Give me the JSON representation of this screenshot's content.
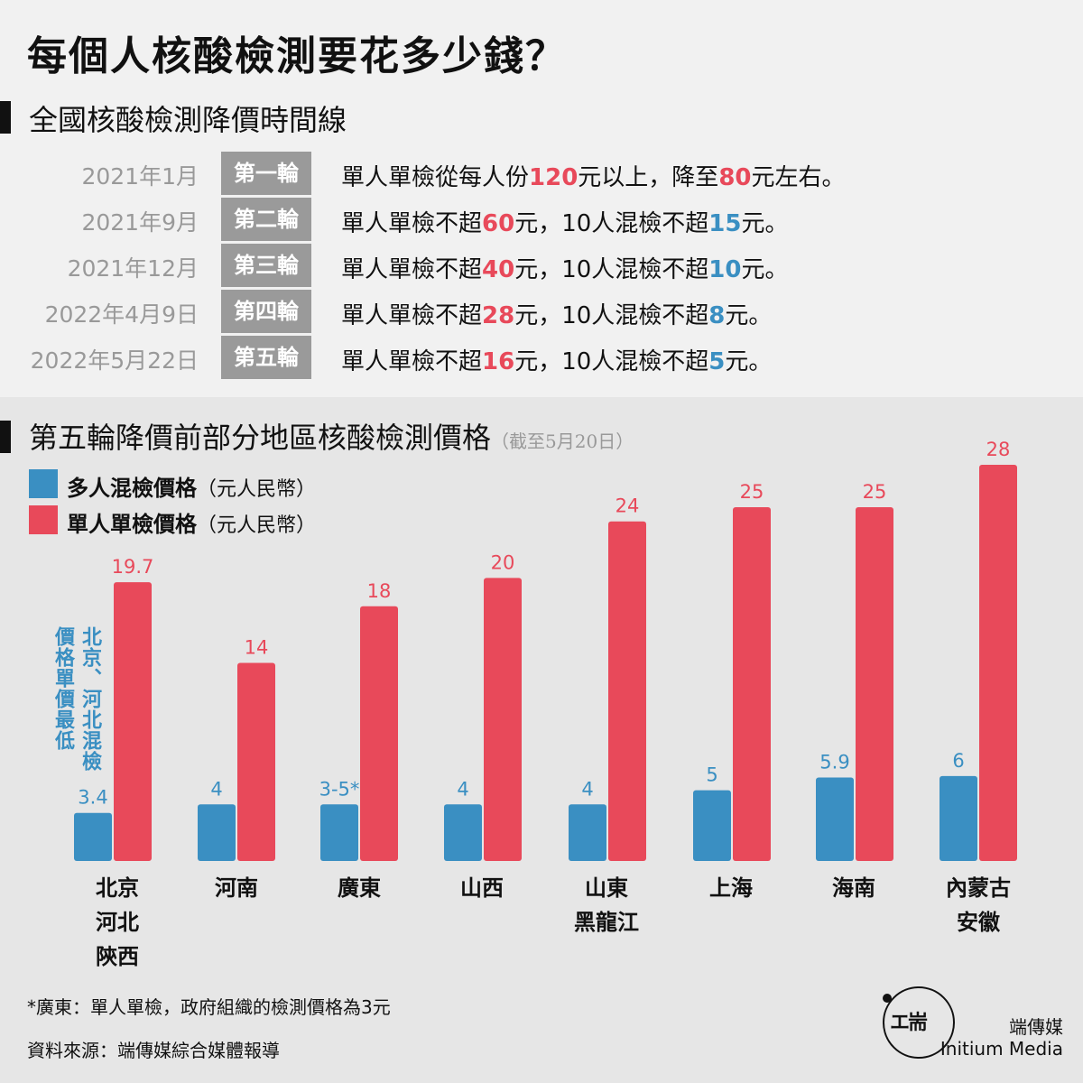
{
  "title": "每個人核酸檢測要花多少錢？",
  "section1": {
    "title": "全國核酸檢測降價時間線",
    "rows": [
      {
        "date": "2021年1月",
        "round": "第一輪",
        "text": [
          [
            "單人單檢從每人份",
            ""
          ],
          [
            "120",
            "red"
          ],
          [
            "元以上，降至",
            ""
          ],
          [
            "80",
            "red"
          ],
          [
            "元左右。",
            ""
          ]
        ]
      },
      {
        "date": "2021年9月",
        "round": "第二輪",
        "text": [
          [
            "單人單檢不超",
            ""
          ],
          [
            "60",
            "red"
          ],
          [
            "元，10人混檢不超",
            ""
          ],
          [
            "15",
            "blue"
          ],
          [
            "元。",
            ""
          ]
        ]
      },
      {
        "date": "2021年12月",
        "round": "第三輪",
        "text": [
          [
            "單人單檢不超",
            ""
          ],
          [
            "40",
            "red"
          ],
          [
            "元，10人混檢不超",
            ""
          ],
          [
            "10",
            "blue"
          ],
          [
            "元。",
            ""
          ]
        ]
      },
      {
        "date": "2022年4月9日",
        "round": "第四輪",
        "text": [
          [
            "單人單檢不超",
            ""
          ],
          [
            "28",
            "red"
          ],
          [
            "元，10人混檢不超",
            ""
          ],
          [
            "8",
            "blue"
          ],
          [
            "元。",
            ""
          ]
        ]
      },
      {
        "date": "2022年5月22日",
        "round": "第五輪",
        "text": [
          [
            "單人單檢不超",
            ""
          ],
          [
            "16",
            "red"
          ],
          [
            "元，10人混檢不超",
            ""
          ],
          [
            "5",
            "blue"
          ],
          [
            "元。",
            ""
          ]
        ]
      }
    ]
  },
  "section2": {
    "title": "第五輪降價前部分地區核酸檢測價格",
    "note": "（截至5月20日）"
  },
  "legend": {
    "multi": "多人混檢價格",
    "single": "單人單檢價格",
    "unit": "（元人民幣）"
  },
  "annotation": {
    "col1": "北京、河北混檢",
    "col2": "價格單價最低"
  },
  "colors": {
    "blue": "#3a8fc2",
    "red": "#e8495a"
  },
  "chart_data": {
    "type": "bar",
    "categories": [
      [
        "北京",
        "河北",
        "陝西"
      ],
      [
        "河南"
      ],
      [
        "廣東"
      ],
      [
        "山西"
      ],
      [
        "山東",
        "黑龍江"
      ],
      [
        "上海"
      ],
      [
        "海南"
      ],
      [
        "內蒙古",
        "安徽"
      ]
    ],
    "series": [
      {
        "name": "多人混檢價格",
        "values": [
          3.4,
          4,
          4,
          4,
          4,
          5,
          5.9,
          6
        ],
        "labels": [
          "3.4",
          "4",
          "3-5*",
          "4",
          "4",
          "5",
          "5.9",
          "6"
        ]
      },
      {
        "name": "單人單檢價格",
        "values": [
          19.7,
          14,
          18,
          20,
          24,
          25,
          25,
          28
        ],
        "labels": [
          "19.7",
          "14",
          "18",
          "20",
          "24",
          "25",
          "25",
          "28"
        ]
      }
    ],
    "ylim": [
      0,
      28
    ],
    "grid": false,
    "legend": "top-left"
  },
  "footnotes": {
    "note": "*廣東：單人單檢，政府組織的檢測價格為3元",
    "source": "資料來源：端傳媒綜合媒體報導"
  },
  "brand": {
    "zh": "端傳媒",
    "en": "Initium Media",
    "mark": "エ耑"
  }
}
